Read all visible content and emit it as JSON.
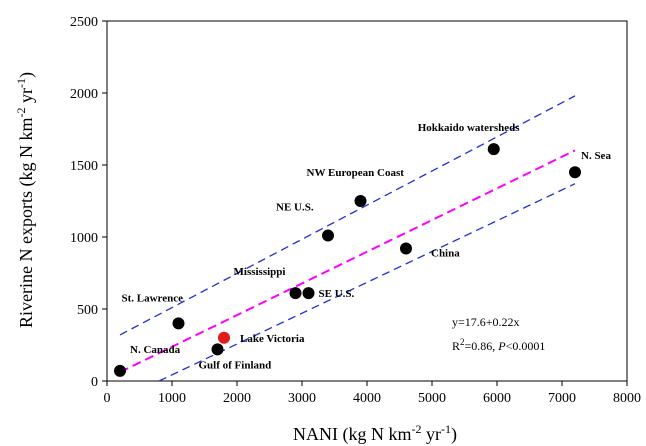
{
  "chart_data": {
    "type": "scatter",
    "xlabel_main": "NANI (kg N km",
    "xlabel_sup1": "-2",
    "xlabel_mid": " yr",
    "xlabel_sup2": "-1",
    "xlabel_end": ")",
    "ylabel_main": "Riverine N exports (kg N km",
    "ylabel_sup1": "-2",
    "ylabel_mid": " yr",
    "ylabel_sup2": "-1",
    "ylabel_end": ")",
    "xlim": [
      0,
      8000
    ],
    "ylim": [
      0,
      2500
    ],
    "xticks": [
      "0",
      "1000",
      "2000",
      "3000",
      "4000",
      "5000",
      "6000",
      "7000",
      "8000"
    ],
    "yticks": [
      "0",
      "500",
      "1000",
      "1500",
      "2000",
      "2500"
    ],
    "grid": false,
    "points": [
      {
        "label": "N. Canada",
        "x": 200,
        "y": 70,
        "highlight": false
      },
      {
        "label": "St. Lawrence",
        "x": 1100,
        "y": 400,
        "highlight": false
      },
      {
        "label": "Gulf of Finland",
        "x": 1700,
        "y": 220,
        "highlight": false
      },
      {
        "label": "Lake Victoria",
        "x": 1800,
        "y": 300,
        "highlight": true
      },
      {
        "label": "Mississippi",
        "x": 2900,
        "y": 610,
        "highlight": false
      },
      {
        "label": "SE U.S.",
        "x": 3100,
        "y": 610,
        "highlight": false
      },
      {
        "label": "NE U.S.",
        "x": 3400,
        "y": 1010,
        "highlight": false
      },
      {
        "label": "NW European Coast",
        "x": 3900,
        "y": 1250,
        "highlight": false
      },
      {
        "label": "China",
        "x": 4600,
        "y": 920,
        "highlight": false
      },
      {
        "label": "Hokkaido watersheds",
        "x": 5950,
        "y": 1610,
        "highlight": false
      },
      {
        "label": "N. Sea",
        "x": 7200,
        "y": 1450,
        "highlight": false
      }
    ],
    "regression": {
      "intercept": 17.6,
      "slope": 0.22,
      "x_range": [
        200,
        7200
      ]
    },
    "upper_band": {
      "x": [
        200,
        7200
      ],
      "y": [
        320,
        1980
      ]
    },
    "lower_band": {
      "x": [
        800,
        7200
      ],
      "y": [
        0,
        1370
      ]
    },
    "equation_line1": "y=17.6+0.22x",
    "equation_r2_main": "R",
    "equation_r2_sup": "2",
    "equation_r2_rest": "=0.86, ",
    "equation_p": "P",
    "equation_p_rest": "<0.0001",
    "colors": {
      "point": "#000000",
      "highlight": "#e01b1b",
      "regression": "#ff00ff",
      "band": "#1f2fd6",
      "axis": "#000000"
    }
  }
}
